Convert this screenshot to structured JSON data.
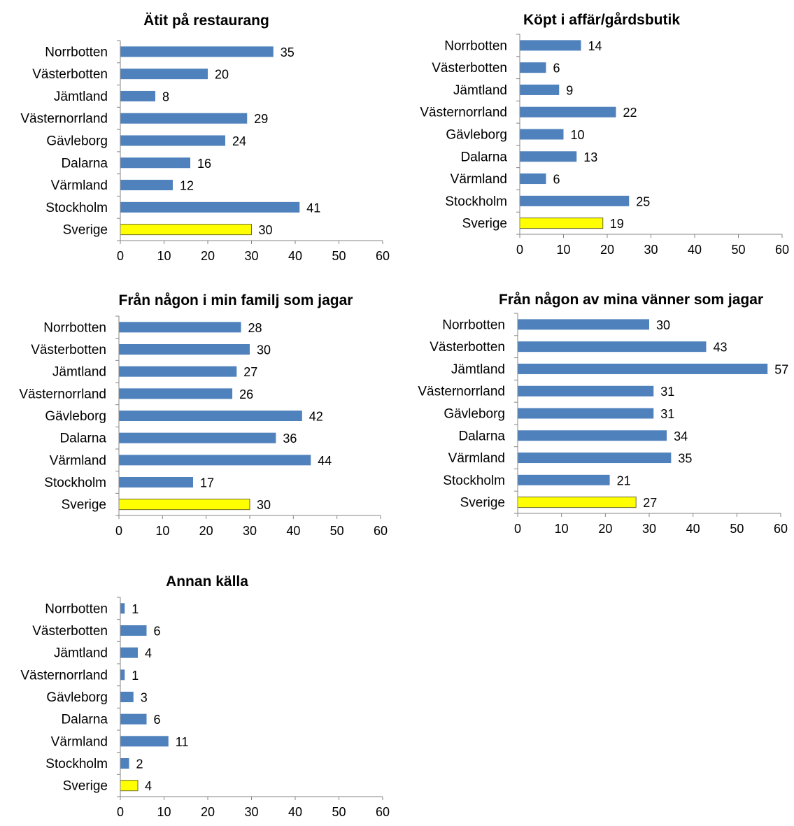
{
  "chart_data": [
    {
      "type": "bar",
      "orientation": "horizontal",
      "title": "Ätit på restaurang",
      "categories": [
        "Norrbotten",
        "Västerbotten",
        "Jämtland",
        "Västernorrland",
        "Gävleborg",
        "Dalarna",
        "Värmland",
        "Stockholm",
        "Sverige"
      ],
      "values": [
        35,
        20,
        8,
        29,
        24,
        16,
        12,
        41,
        30
      ],
      "xlim": [
        0,
        60
      ],
      "ticks": [
        0,
        10,
        20,
        30,
        40,
        50,
        60
      ],
      "grid": false,
      "colors": {
        "bar": "#4f81bd",
        "highlight": "#ffff00",
        "highlight_category": "Sverige"
      }
    },
    {
      "type": "bar",
      "orientation": "horizontal",
      "title": "Köpt i affär/gårdsbutik",
      "categories": [
        "Norrbotten",
        "Västerbotten",
        "Jämtland",
        "Västernorrland",
        "Gävleborg",
        "Dalarna",
        "Värmland",
        "Stockholm",
        "Sverige"
      ],
      "values": [
        14,
        6,
        9,
        22,
        10,
        13,
        6,
        25,
        19
      ],
      "xlim": [
        0,
        60
      ],
      "ticks": [
        0,
        10,
        20,
        30,
        40,
        50,
        60
      ],
      "grid": false,
      "colors": {
        "bar": "#4f81bd",
        "highlight": "#ffff00",
        "highlight_category": "Sverige"
      }
    },
    {
      "type": "bar",
      "orientation": "horizontal",
      "title": "Från någon i min familj som jagar",
      "categories": [
        "Norrbotten",
        "Västerbotten",
        "Jämtland",
        "Västernorrland",
        "Gävleborg",
        "Dalarna",
        "Värmland",
        "Stockholm",
        "Sverige"
      ],
      "values": [
        28,
        30,
        27,
        26,
        42,
        36,
        44,
        17,
        30
      ],
      "xlim": [
        0,
        60
      ],
      "ticks": [
        0,
        10,
        20,
        30,
        40,
        50,
        60
      ],
      "grid": false,
      "colors": {
        "bar": "#4f81bd",
        "highlight": "#ffff00",
        "highlight_category": "Sverige"
      }
    },
    {
      "type": "bar",
      "orientation": "horizontal",
      "title": "Från någon av mina vänner som jagar",
      "categories": [
        "Norrbotten",
        "Västerbotten",
        "Jämtland",
        "Västernorrland",
        "Gävleborg",
        "Dalarna",
        "Värmland",
        "Stockholm",
        "Sverige"
      ],
      "values": [
        30,
        43,
        57,
        31,
        31,
        34,
        35,
        21,
        27
      ],
      "xlim": [
        0,
        60
      ],
      "ticks": [
        0,
        10,
        20,
        30,
        40,
        50,
        60
      ],
      "grid": false,
      "colors": {
        "bar": "#4f81bd",
        "highlight": "#ffff00",
        "highlight_category": "Sverige"
      }
    },
    {
      "type": "bar",
      "orientation": "horizontal",
      "title": "Annan källa",
      "categories": [
        "Norrbotten",
        "Västerbotten",
        "Jämtland",
        "Västernorrland",
        "Gävleborg",
        "Dalarna",
        "Värmland",
        "Stockholm",
        "Sverige"
      ],
      "values": [
        1,
        6,
        4,
        1,
        3,
        6,
        11,
        2,
        4
      ],
      "xlim": [
        0,
        60
      ],
      "ticks": [
        0,
        10,
        20,
        30,
        40,
        50,
        60
      ],
      "grid": false,
      "colors": {
        "bar": "#4f81bd",
        "highlight": "#ffff00",
        "highlight_category": "Sverige"
      }
    }
  ]
}
